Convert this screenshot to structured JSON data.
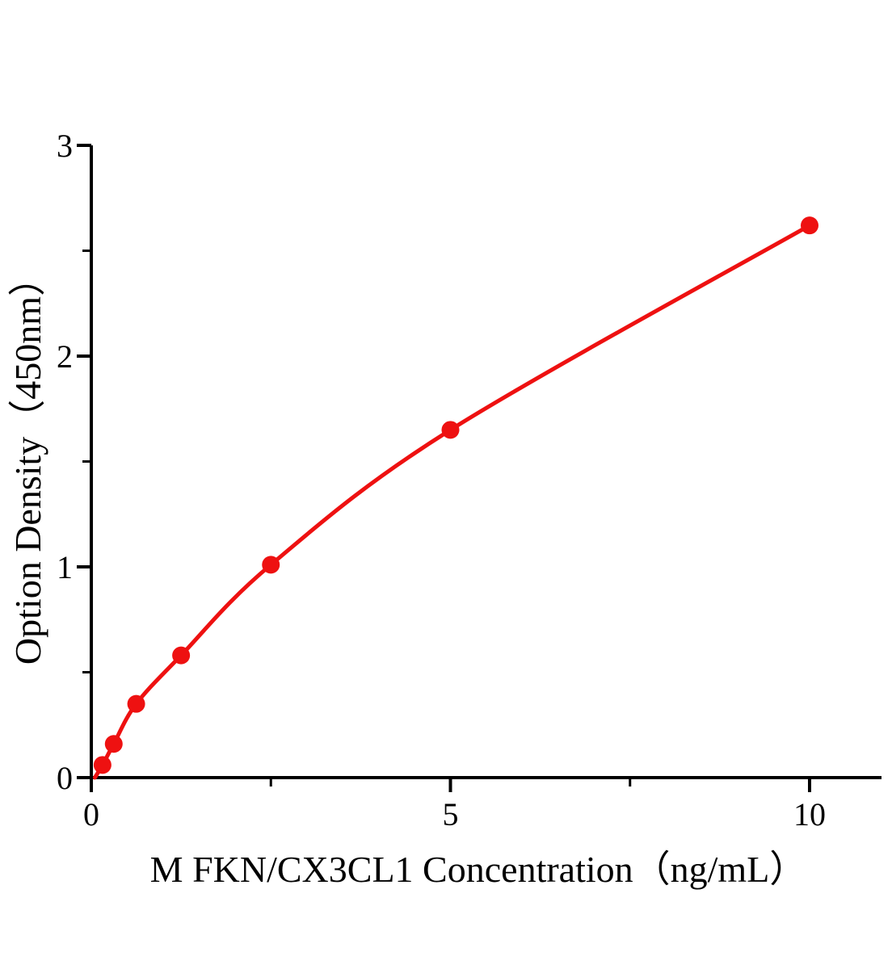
{
  "figure": {
    "background": "#ffffff"
  },
  "chart_data": {
    "type": "line",
    "title": "",
    "xlabel": "M FKN/CX3CL1 Concentration（ng/mL）",
    "ylabel": "Option Density（450nm）",
    "x": [
      0.156,
      0.3125,
      0.625,
      1.25,
      2.5,
      5,
      10
    ],
    "y": [
      0.06,
      0.16,
      0.35,
      0.58,
      1.01,
      1.65,
      2.62
    ],
    "curve_start": [
      0.05,
      0
    ],
    "xlim": [
      0,
      11
    ],
    "ylim": [
      0,
      3
    ],
    "x_major_ticks": [
      0,
      5,
      10
    ],
    "x_minor_ticks": [
      2.5,
      7.5
    ],
    "y_major_ticks": [
      0,
      1,
      2,
      3
    ],
    "y_minor_ticks": [
      0.5,
      1.5,
      2.5
    ],
    "grid": "off",
    "legend": "none",
    "line_color": "#ee1111",
    "marker_color": "#ee1111",
    "marker": "circle",
    "axis_color": "#000000"
  }
}
